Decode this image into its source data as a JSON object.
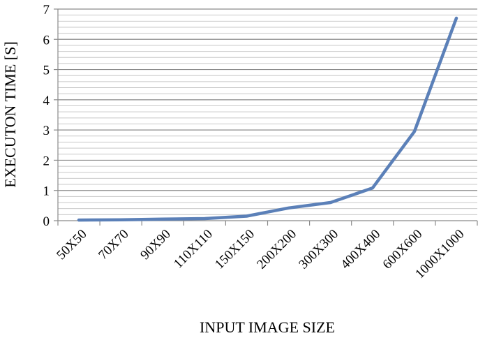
{
  "chart_data": {
    "type": "line",
    "title": "",
    "xlabel": "INPUT IMAGE SIZE",
    "ylabel": "EXECUTON TIME [S]",
    "ylim": [
      0,
      7
    ],
    "y_ticks": [
      "0",
      "1",
      "2",
      "3",
      "4",
      "5",
      "6",
      "7"
    ],
    "y_minor_step": 0.2,
    "grid": true,
    "legend": "none",
    "categories": [
      "50X50",
      "70X70",
      "90X90",
      "110X110",
      "150X150",
      "200X200",
      "300X300",
      "400X400",
      "600X600",
      "1000X1000"
    ],
    "series": [
      {
        "values": [
          0.02,
          0.03,
          0.05,
          0.07,
          0.15,
          0.42,
          0.6,
          1.08,
          2.95,
          6.7
        ],
        "color": "#5b80b8"
      }
    ]
  }
}
